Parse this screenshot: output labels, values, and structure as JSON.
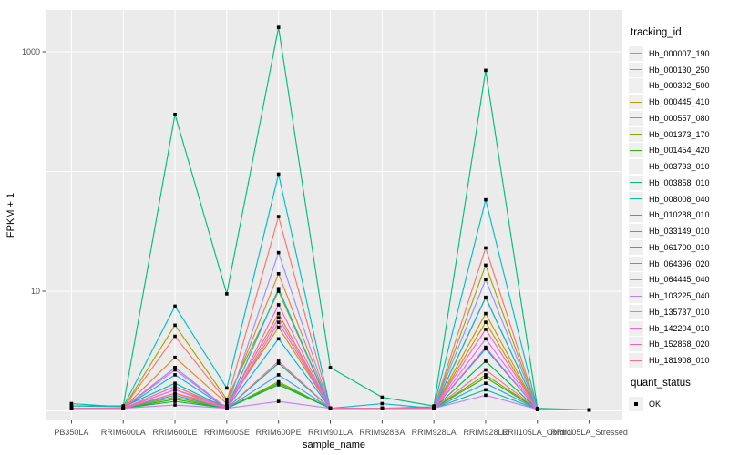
{
  "figure": {
    "background": "#FFFFFF",
    "panel_background": "#EBEBEB",
    "gridline_color": "#FFFFFF",
    "tick_color": "#333333",
    "tick_label_color": "#4D4D4D",
    "axis_title_color": "#000000",
    "point_color": "#000000"
  },
  "chart_data": {
    "type": "line",
    "title": "",
    "xlabel": "sample_name",
    "ylabel": "FPKM + 1",
    "y_scale": "log10",
    "grid": true,
    "legend_position": "right",
    "ylim": [
      1,
      1600
    ],
    "y_gridlines": [
      1,
      10,
      100,
      1000
    ],
    "y_ticks": [
      {
        "label": "10",
        "value": 10
      },
      {
        "label": "1000",
        "value": 1000
      }
    ],
    "categories": [
      "PB350LA",
      "RRIM600LA",
      "RRIM600LE",
      "RRIM600SE",
      "RRIM600PE",
      "RRIM901LA",
      "RRIM928BA",
      "RRIM928LA",
      "RRIM928LE",
      "RRII105LA_Control",
      "RRII105LA_Stressed"
    ],
    "series": [
      {
        "name": "Hb_000007_190",
        "color": "#F8766D",
        "values": [
          1.05,
          1.05,
          4.2,
          1.2,
          42,
          1.05,
          1.05,
          1.05,
          23,
          1.03,
          1.02
        ]
      },
      {
        "name": "Hb_000130_250",
        "color": "#EA8331",
        "values": [
          1.05,
          1.05,
          2.8,
          1.15,
          14,
          1.05,
          1.05,
          1.05,
          8.8,
          1.03,
          1.02
        ]
      },
      {
        "name": "Hb_000392_500",
        "color": "#D89000",
        "values": [
          1.05,
          1.05,
          1.5,
          1.1,
          6.5,
          1.05,
          1.05,
          1.05,
          6.5,
          1.03,
          1.02
        ]
      },
      {
        "name": "Hb_000445_410",
        "color": "#C09B00",
        "values": [
          1.05,
          1.05,
          1.4,
          1.1,
          5.0,
          1.05,
          1.05,
          1.05,
          5.5,
          1.03,
          1.02
        ]
      },
      {
        "name": "Hb_000557_080",
        "color": "#A3A500",
        "values": [
          1.05,
          1.05,
          5.2,
          1.25,
          10,
          1.05,
          1.05,
          1.05,
          16.5,
          1.03,
          1.02
        ]
      },
      {
        "name": "Hb_001373_170",
        "color": "#7CAE00",
        "values": [
          1.05,
          1.05,
          1.3,
          1.05,
          1.75,
          1.05,
          1.05,
          1.05,
          2.0,
          1.03,
          1.02
        ]
      },
      {
        "name": "Hb_001454_420",
        "color": "#39B600",
        "values": [
          1.05,
          1.05,
          1.25,
          1.05,
          1.7,
          1.05,
          1.05,
          1.05,
          1.9,
          1.03,
          1.02
        ]
      },
      {
        "name": "Hb_003793_010",
        "color": "#00BB4E",
        "values": [
          1.05,
          1.05,
          1.2,
          1.05,
          1.65,
          1.05,
          1.05,
          1.05,
          2.6,
          1.03,
          1.02
        ]
      },
      {
        "name": "Hb_003858_010",
        "color": "#00BF7D",
        "values": [
          1.1,
          1.1,
          300,
          9.5,
          1600,
          2.3,
          1.3,
          1.1,
          700,
          1.05,
          1.02
        ]
      },
      {
        "name": "Hb_008008_040",
        "color": "#00C1A3",
        "values": [
          1.15,
          1.08,
          1.7,
          1.05,
          2.5,
          1.05,
          1.05,
          1.05,
          1.5,
          1.03,
          1.02
        ]
      },
      {
        "name": "Hb_010288_010",
        "color": "#00BFC4",
        "values": [
          1.1,
          1.08,
          7.5,
          1.55,
          95,
          1.05,
          1.05,
          1.08,
          58,
          1.03,
          1.02
        ]
      },
      {
        "name": "Hb_033149_010",
        "color": "#00BAE0",
        "values": [
          1.05,
          1.05,
          2.3,
          1.05,
          10.5,
          1.05,
          1.15,
          1.05,
          8.9,
          1.03,
          1.02
        ]
      },
      {
        "name": "Hb_061700_010",
        "color": "#00B0F6",
        "values": [
          1.05,
          1.05,
          2.0,
          1.05,
          4.0,
          1.05,
          1.05,
          1.05,
          3.3,
          1.03,
          1.02
        ]
      },
      {
        "name": "Hb_064396_020",
        "color": "#35A2FF",
        "values": [
          1.05,
          1.05,
          1.35,
          1.05,
          2.0,
          1.05,
          1.05,
          1.05,
          1.7,
          1.03,
          1.02
        ]
      },
      {
        "name": "Hb_064445_040",
        "color": "#9590FF",
        "values": [
          1.05,
          1.05,
          2.3,
          1.05,
          21,
          1.05,
          1.05,
          1.05,
          12.5,
          1.03,
          1.02
        ]
      },
      {
        "name": "Hb_103225_040",
        "color": "#C77CFF",
        "values": [
          1.05,
          1.05,
          1.12,
          1.05,
          1.2,
          1.05,
          1.05,
          1.05,
          1.35,
          1.03,
          1.02
        ]
      },
      {
        "name": "Hb_135737_010",
        "color": "#E76BF3",
        "values": [
          1.05,
          1.05,
          1.5,
          1.05,
          6.0,
          1.05,
          1.05,
          1.05,
          4.0,
          1.03,
          1.02
        ]
      },
      {
        "name": "Hb_142204_010",
        "color": "#FA62DB",
        "values": [
          1.05,
          1.05,
          2.2,
          1.05,
          7.7,
          1.05,
          1.05,
          1.05,
          4.8,
          1.03,
          1.02
        ]
      },
      {
        "name": "Hb_152868_020",
        "color": "#FF62BC",
        "values": [
          1.05,
          1.05,
          1.6,
          1.05,
          5.5,
          1.05,
          1.05,
          1.05,
          3.4,
          1.03,
          1.02
        ]
      },
      {
        "name": "Hb_181908_010",
        "color": "#FF6A98",
        "values": [
          1.05,
          1.05,
          1.4,
          1.05,
          2.6,
          1.05,
          1.05,
          1.05,
          2.2,
          1.03,
          1.02
        ]
      }
    ],
    "legends": {
      "tracking": {
        "title": "tracking_id"
      },
      "quant": {
        "title": "quant_status",
        "items": [
          "OK"
        ]
      }
    }
  }
}
